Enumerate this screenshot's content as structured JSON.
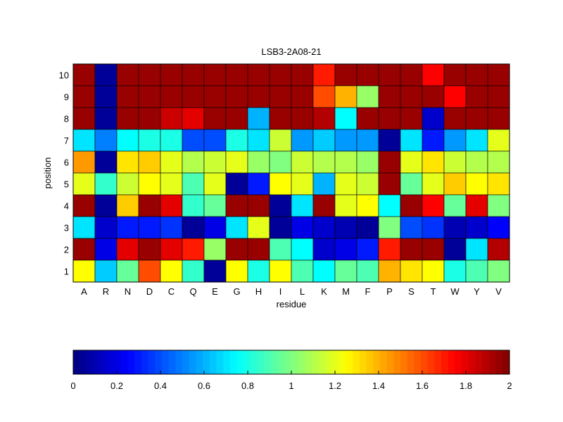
{
  "chart_data": {
    "type": "heatmap",
    "title": "LSB3-2A08-21",
    "xlabel": "residue",
    "ylabel": "position",
    "x_categories": [
      "A",
      "R",
      "N",
      "D",
      "C",
      "Q",
      "E",
      "G",
      "H",
      "I",
      "L",
      "K",
      "M",
      "F",
      "P",
      "S",
      "T",
      "W",
      "Y",
      "V"
    ],
    "y_categories": [
      "10",
      "9",
      "8",
      "7",
      "6",
      "5",
      "4",
      "3",
      "2",
      "1"
    ],
    "values": [
      [
        1.95,
        0.05,
        1.95,
        1.95,
        1.95,
        1.95,
        1.95,
        1.95,
        1.95,
        1.95,
        1.95,
        1.7,
        1.95,
        1.95,
        1.95,
        1.95,
        1.75,
        1.95,
        1.95,
        1.95
      ],
      [
        1.95,
        0.05,
        1.95,
        1.95,
        1.95,
        1.95,
        1.95,
        1.95,
        1.95,
        1.95,
        1.95,
        1.6,
        1.4,
        1.05,
        1.95,
        1.95,
        1.95,
        1.75,
        1.95,
        1.95
      ],
      [
        1.95,
        0.05,
        1.95,
        1.95,
        1.85,
        1.8,
        1.95,
        1.95,
        0.6,
        1.95,
        1.95,
        1.9,
        0.75,
        1.95,
        1.95,
        1.95,
        0.15,
        1.95,
        1.95,
        1.95
      ],
      [
        0.7,
        0.5,
        0.75,
        0.8,
        0.8,
        0.4,
        0.4,
        0.8,
        0.7,
        1.15,
        0.55,
        0.65,
        0.55,
        0.55,
        0.05,
        0.7,
        0.3,
        0.55,
        0.7,
        1.2
      ],
      [
        1.45,
        0.05,
        1.3,
        1.35,
        1.2,
        1.1,
        1.15,
        1.2,
        1.05,
        1.0,
        1.15,
        1.1,
        1.1,
        1.05,
        1.95,
        1.2,
        1.3,
        1.15,
        1.1,
        1.1
      ],
      [
        1.2,
        0.85,
        1.15,
        1.25,
        1.2,
        0.9,
        1.2,
        0.05,
        0.3,
        1.25,
        1.2,
        0.6,
        1.2,
        1.15,
        1.95,
        0.95,
        1.2,
        1.35,
        1.25,
        1.3
      ],
      [
        1.95,
        0.05,
        1.35,
        1.95,
        1.8,
        0.85,
        0.95,
        1.95,
        1.95,
        0.05,
        0.7,
        1.95,
        1.2,
        1.25,
        0.75,
        1.95,
        1.75,
        0.95,
        1.8,
        1.0
      ],
      [
        0.7,
        0.15,
        0.3,
        0.3,
        0.35,
        0.05,
        0.2,
        0.7,
        1.2,
        0.05,
        0.2,
        0.15,
        0.1,
        0.05,
        1.0,
        0.4,
        0.35,
        0.1,
        0.15,
        0.25
      ],
      [
        1.95,
        0.2,
        1.8,
        1.95,
        1.8,
        1.7,
        1.05,
        1.95,
        1.95,
        0.9,
        0.75,
        0.15,
        0.2,
        0.3,
        1.7,
        1.95,
        1.95,
        0.05,
        0.7,
        1.9
      ],
      [
        1.25,
        0.65,
        0.95,
        1.6,
        1.25,
        0.85,
        0.05,
        1.25,
        0.8,
        1.25,
        0.9,
        0.75,
        0.95,
        0.9,
        1.4,
        1.3,
        1.25,
        0.8,
        0.9,
        1.0
      ]
    ],
    "colorbar": {
      "colormap": "jet",
      "range": [
        0,
        2
      ],
      "tick_labels": [
        "0",
        "0.2",
        "0.4",
        "0.6",
        "0.8",
        "1",
        "1.2",
        "1.4",
        "1.6",
        "1.8",
        "2"
      ],
      "placement": "bottom"
    },
    "grid": true
  }
}
